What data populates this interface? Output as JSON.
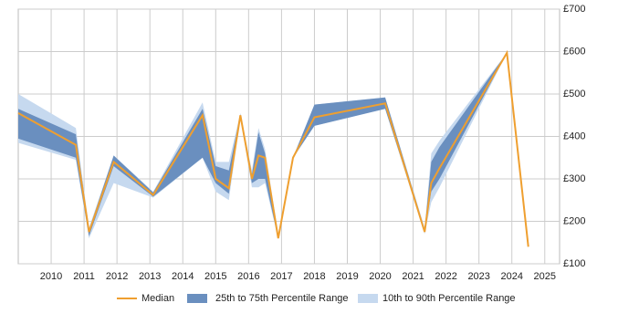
{
  "chart_data": {
    "type": "line",
    "x": [
      2009,
      2010.75,
      2011.15,
      2011.9,
      2013.1,
      2014.6,
      2015.0,
      2015.4,
      2015.75,
      2016.1,
      2016.3,
      2016.5,
      2016.9,
      2017.35,
      2018.0,
      2020.15,
      2021.35,
      2021.55,
      2021.8,
      2023.85,
      2024.5
    ],
    "series": [
      {
        "name": "Median",
        "color": "#ef9f2f",
        "values": [
          455,
          380,
          175,
          340,
          262,
          450,
          300,
          278,
          450,
          300,
          355,
          350,
          160,
          350,
          445,
          478,
          175,
          290,
          325,
          597,
          140
        ]
      },
      {
        "name": "25th to 75th Percentile Range",
        "color": "#6a8fbf",
        "lower": [
          395,
          350,
          165,
          330,
          258,
          350,
          290,
          265,
          445,
          290,
          300,
          300,
          160,
          350,
          425,
          465,
          175,
          270,
          300,
          597,
          null
        ],
        "upper": [
          465,
          405,
          180,
          355,
          268,
          465,
          330,
          320,
          452,
          310,
          410,
          360,
          165,
          350,
          475,
          492,
          180,
          340,
          375,
          597,
          null
        ]
      },
      {
        "name": "10th to 90th Percentile Range",
        "color": "#c6d9ef",
        "lower": [
          385,
          345,
          160,
          290,
          256,
          350,
          270,
          250,
          445,
          280,
          280,
          290,
          158,
          348,
          425,
          465,
          170,
          245,
          280,
          597,
          null
        ],
        "upper": [
          500,
          420,
          185,
          355,
          270,
          480,
          340,
          340,
          455,
          320,
          420,
          370,
          170,
          352,
          475,
          492,
          185,
          360,
          390,
          597,
          null
        ]
      }
    ],
    "xlim": [
      2009,
      2025.45
    ],
    "xticks": [
      2010,
      2011,
      2012,
      2013,
      2014,
      2015,
      2016,
      2017,
      2018,
      2019,
      2020,
      2021,
      2022,
      2023,
      2024,
      2025
    ],
    "ylim": [
      100,
      700
    ],
    "yticks": [
      {
        "value": 100,
        "label": "£100"
      },
      {
        "value": 200,
        "label": "£200"
      },
      {
        "value": 300,
        "label": "£300"
      },
      {
        "value": 400,
        "label": "£400"
      },
      {
        "value": 500,
        "label": "£500"
      },
      {
        "value": 600,
        "label": "£600"
      },
      {
        "value": 700,
        "label": "£700"
      }
    ],
    "grid": true,
    "legend": "bottom"
  }
}
